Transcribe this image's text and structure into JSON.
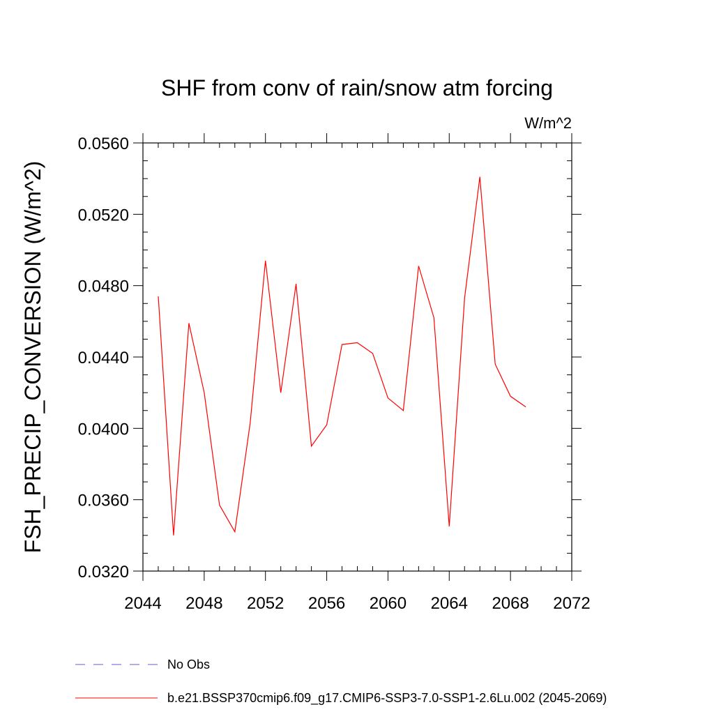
{
  "chart_data": {
    "type": "line",
    "title": "SHF from conv of rain/snow atm forcing",
    "units_label": "W/m^2",
    "ylabel": "FSH_PRECIP_CONVERSION  (W/m^2)",
    "xlabel": "",
    "xlim": [
      2044,
      2072
    ],
    "ylim": [
      0.032,
      0.056
    ],
    "x_ticks": [
      2044,
      2048,
      2052,
      2056,
      2060,
      2064,
      2068,
      2072
    ],
    "x_tick_labels": [
      "2044",
      "2048",
      "2052",
      "2056",
      "2060",
      "2064",
      "2068",
      "2072"
    ],
    "y_ticks": [
      0.032,
      0.036,
      0.04,
      0.044,
      0.048,
      0.052,
      0.056
    ],
    "y_tick_labels": [
      "0.0320",
      "0.0360",
      "0.0400",
      "0.0440",
      "0.0480",
      "0.0520",
      "0.0560"
    ],
    "grid": false,
    "legend_position": "bottom",
    "series": [
      {
        "name": "b.e21.BSSP370cmip6.f09_g17.CMIP6-SSP3-7.0-SSP1-2.6Lu.002 (2045-2069)",
        "color": "#ff0000",
        "dash": "solid",
        "x": [
          2045,
          2046,
          2047,
          2048,
          2049,
          2050,
          2051,
          2052,
          2053,
          2054,
          2055,
          2056,
          2057,
          2058,
          2059,
          2060,
          2061,
          2062,
          2063,
          2064,
          2065,
          2066,
          2067,
          2068,
          2069
        ],
        "y": [
          0.0474,
          0.034,
          0.0459,
          0.042,
          0.0357,
          0.0342,
          0.0403,
          0.0494,
          0.042,
          0.0481,
          0.039,
          0.0402,
          0.0447,
          0.0448,
          0.0442,
          0.0417,
          0.041,
          0.0491,
          0.0462,
          0.0345,
          0.0473,
          0.0541,
          0.0436,
          0.0418,
          0.0412
        ]
      }
    ],
    "legend": [
      {
        "label": "No Obs",
        "color": "#6a5acd",
        "dash": "dashed"
      },
      {
        "label": "b.e21.BSSP370cmip6.f09_g17.CMIP6-SSP3-7.0-SSP1-2.6Lu.002 (2045-2069)",
        "color": "#ff0000",
        "dash": "solid"
      }
    ]
  }
}
